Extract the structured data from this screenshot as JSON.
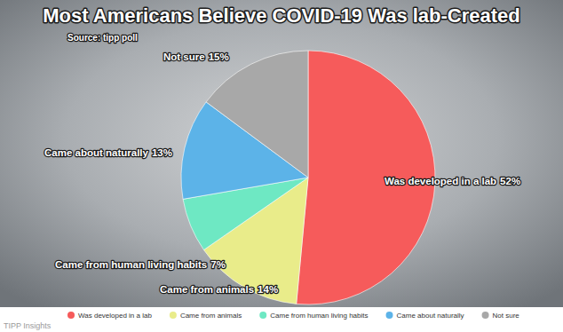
{
  "chart_data": {
    "type": "pie",
    "title": "Most Americans Believe COVID-19 Was lab-Created",
    "annotations": [
      "Source: tipp poll",
      "TIPP Insights"
    ],
    "categories": [
      "Was developed in a lab",
      "Came from animals",
      "Came from human living habits",
      "Came about naturally",
      "Not sure"
    ],
    "values": [
      52,
      14,
      7,
      13,
      15
    ],
    "value_labels": [
      "52%",
      "14%",
      "7%",
      "13%",
      "15%"
    ],
    "colors": [
      "#f65b5b",
      "#e9ec8a",
      "#6ee8c3",
      "#5cb3e8",
      "#a8a8a8"
    ],
    "data_labels": true,
    "legend": "bottom"
  }
}
